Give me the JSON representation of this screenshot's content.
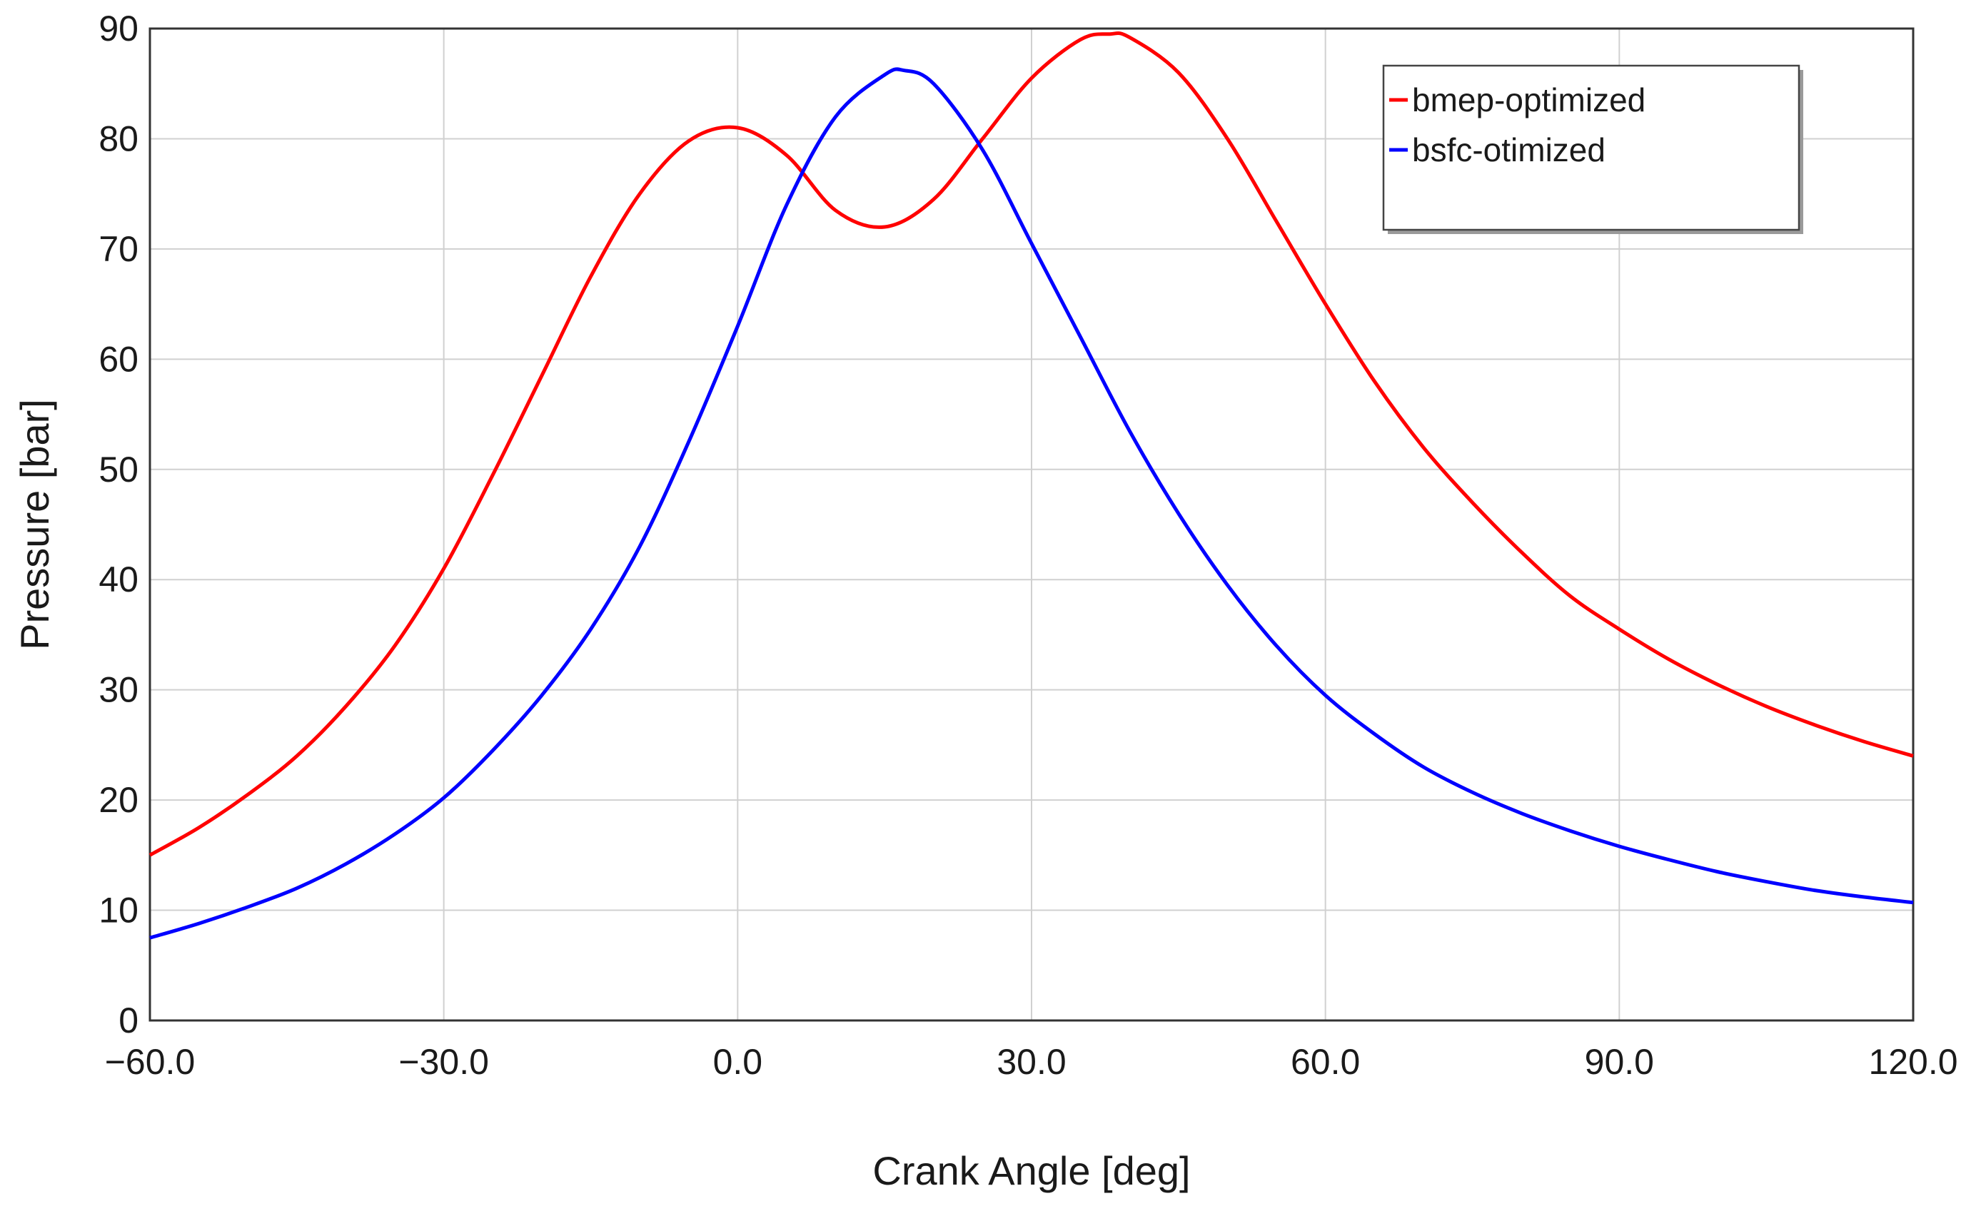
{
  "chart_data": {
    "type": "line",
    "title": "",
    "xlabel": "Crank Angle  [deg]",
    "ylabel": "Pressure [bar]",
    "xlim": [
      -60,
      120
    ],
    "ylim": [
      0,
      90
    ],
    "grid": true,
    "legend_position": "top-right",
    "x_ticks": [
      -60,
      -30,
      0,
      30,
      60,
      90,
      120
    ],
    "x_tick_labels": [
      "−60.0",
      "−30.0",
      "0.0",
      "30.0",
      "60.0",
      "90.0",
      "120.0"
    ],
    "y_ticks": [
      0,
      10,
      20,
      30,
      40,
      50,
      60,
      70,
      80,
      90
    ],
    "y_tick_labels": [
      "0",
      "10",
      "20",
      "30",
      "40",
      "50",
      "60",
      "70",
      "80",
      "90"
    ],
    "series": [
      {
        "name": "bmep-optimized",
        "color": "#ff0000",
        "x": [
          -60,
          -55,
          -50,
          -45,
          -40,
          -35,
          -30,
          -25,
          -20,
          -15,
          -10,
          -5,
          0,
          5,
          10,
          15,
          20,
          25,
          30,
          35,
          38,
          40,
          45,
          50,
          55,
          60,
          65,
          70,
          75,
          80,
          85,
          90,
          95,
          100,
          105,
          110,
          115,
          120
        ],
        "y": [
          15,
          17.5,
          20.5,
          24,
          28.5,
          34,
          41,
          49.5,
          58.5,
          67.5,
          75,
          79.8,
          81,
          78.5,
          73.5,
          72,
          74.5,
          80,
          85.5,
          89,
          89.5,
          89.2,
          86,
          80,
          72.5,
          65,
          58,
          52,
          47,
          42.5,
          38.5,
          35.5,
          32.8,
          30.5,
          28.5,
          26.8,
          25.3,
          24
        ]
      },
      {
        "name": "bsfc-otimized",
        "color": "#0000ff",
        "x": [
          -60,
          -55,
          -50,
          -45,
          -40,
          -35,
          -30,
          -25,
          -20,
          -15,
          -10,
          -5,
          0,
          5,
          10,
          15,
          17,
          20,
          25,
          30,
          35,
          40,
          45,
          50,
          55,
          60,
          65,
          70,
          75,
          80,
          85,
          90,
          95,
          100,
          105,
          110,
          115,
          120
        ],
        "y": [
          7.5,
          8.8,
          10.3,
          12,
          14.2,
          16.9,
          20.2,
          24.5,
          29.5,
          35.5,
          43,
          52.5,
          63,
          74,
          82,
          85.8,
          86.2,
          85,
          79,
          70.5,
          62,
          53.5,
          46,
          39.5,
          34,
          29.5,
          26,
          23,
          20.7,
          18.8,
          17.2,
          15.8,
          14.6,
          13.5,
          12.6,
          11.8,
          11.2,
          10.7
        ]
      }
    ]
  }
}
